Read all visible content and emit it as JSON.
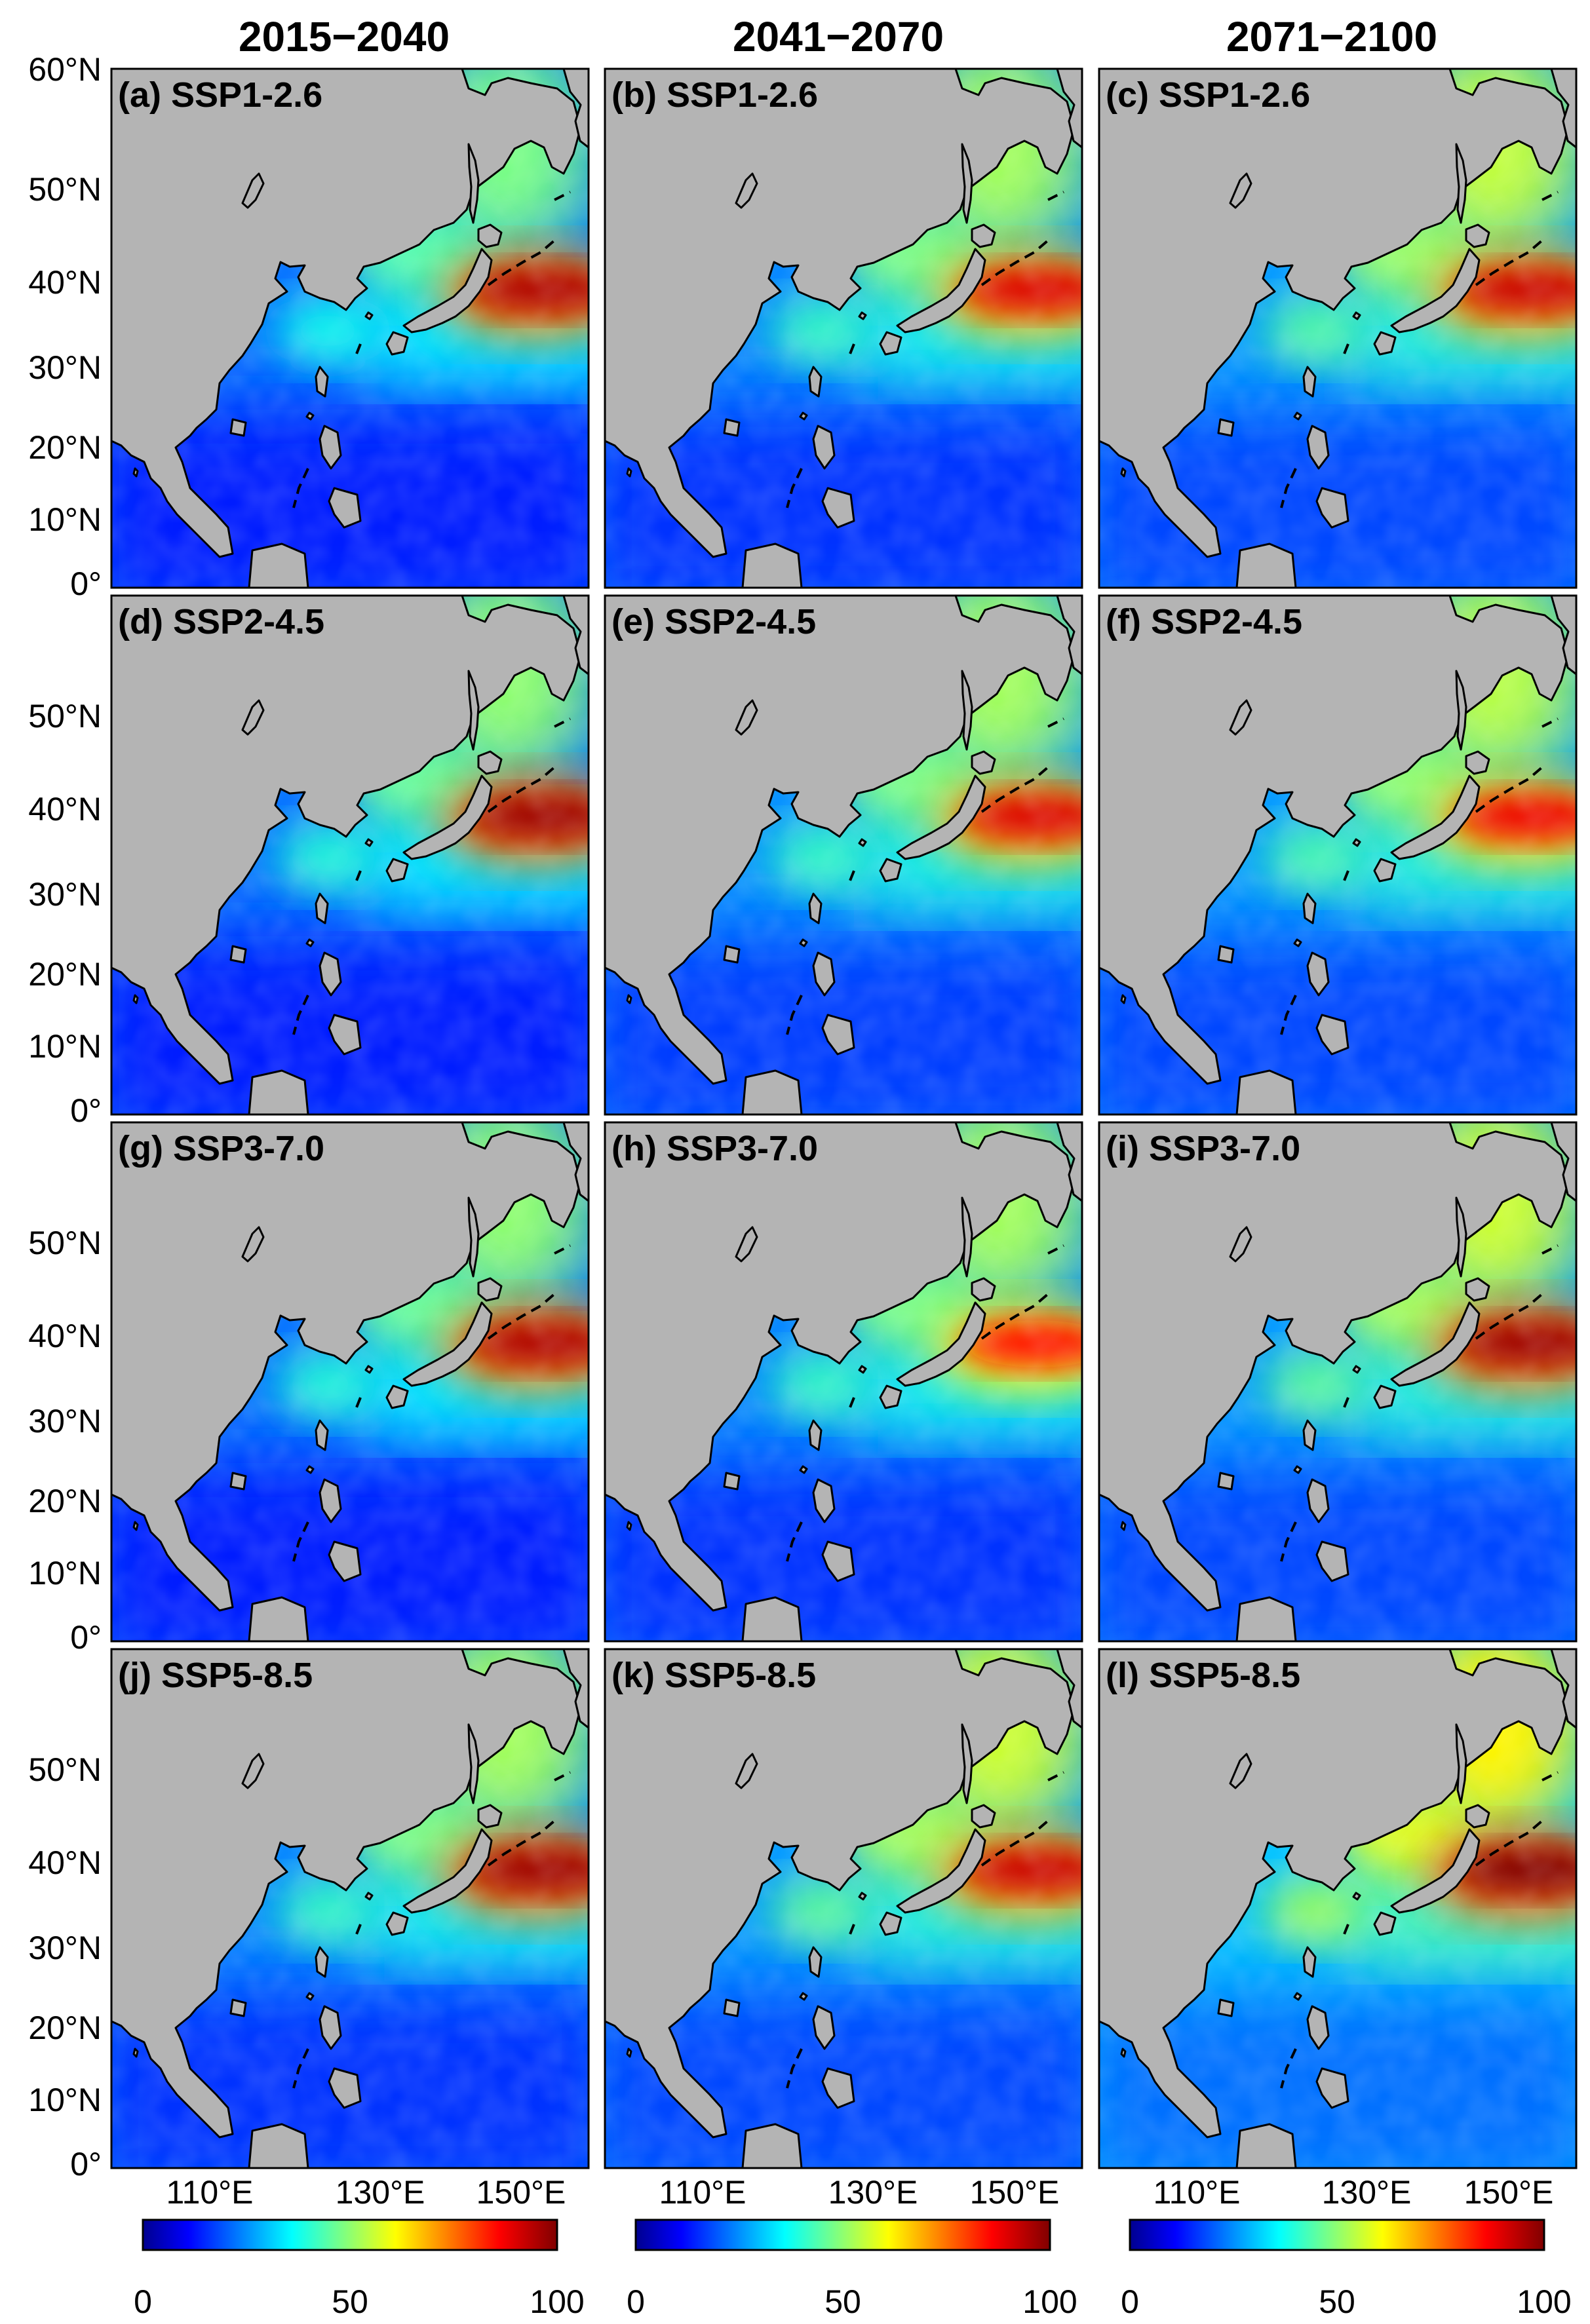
{
  "columns": [
    "2015−2040",
    "2041−2070",
    "2071−2100"
  ],
  "lat_ticks": [
    "60°N",
    "50°N",
    "40°N",
    "30°N",
    "20°N",
    "10°N",
    "0°"
  ],
  "lon_ticks": [
    "110°E",
    "130°E",
    "150°E"
  ],
  "colorbar": {
    "ticks": [
      "0",
      "50",
      "100"
    ],
    "min": 0,
    "max": 100,
    "colormap": "jet"
  },
  "colors": {
    "land": "#b4b4b4",
    "coast": "#000000",
    "frame": "#000000"
  },
  "panels": [
    {
      "label": "(a) SSP1-2.6",
      "scenario": "SSP1-2.6",
      "period": "2015−2040",
      "peak": 95
    },
    {
      "label": "(b) SSP1-2.6",
      "scenario": "SSP1-2.6",
      "period": "2041−2070",
      "peak": 90
    },
    {
      "label": "(c) SSP1-2.6",
      "scenario": "SSP1-2.6",
      "period": "2071−2100",
      "peak": 92
    },
    {
      "label": "(d) SSP2-4.5",
      "scenario": "SSP2-4.5",
      "period": "2015−2040",
      "peak": 97
    },
    {
      "label": "(e) SSP2-4.5",
      "scenario": "SSP2-4.5",
      "period": "2041−2070",
      "peak": 90
    },
    {
      "label": "(f) SSP2-4.5",
      "scenario": "SSP2-4.5",
      "period": "2071−2100",
      "peak": 88
    },
    {
      "label": "(g) SSP3-7.0",
      "scenario": "SSP3-7.0",
      "period": "2015−2040",
      "peak": 95
    },
    {
      "label": "(h) SSP3-7.0",
      "scenario": "SSP3-7.0",
      "period": "2041−2070",
      "peak": 85
    },
    {
      "label": "(i) SSP3-7.0",
      "scenario": "SSP3-7.0",
      "period": "2071−2100",
      "peak": 97
    },
    {
      "label": "(j) SSP5-8.5",
      "scenario": "SSP5-8.5",
      "period": "2015−2040",
      "peak": 97
    },
    {
      "label": "(k) SSP5-8.5",
      "scenario": "SSP5-8.5",
      "period": "2041−2070",
      "peak": 92
    },
    {
      "label": "(l) SSP5-8.5",
      "scenario": "SSP5-8.5",
      "period": "2071−2100",
      "peak": 100
    }
  ],
  "chart_data": {
    "type": "heatmap",
    "map_extent": {
      "lon": [
        95,
        165
      ],
      "lat": [
        0,
        60
      ]
    },
    "color_range": [
      0,
      100
    ],
    "panels": [
      {
        "label": "(a) SSP1-2.6",
        "band_max": 95,
        "ocean_background": 22,
        "subpolar": 48
      },
      {
        "label": "(b) SSP1-2.6",
        "band_max": 90,
        "ocean_background": 24,
        "subpolar": 52
      },
      {
        "label": "(c) SSP1-2.6",
        "band_max": 92,
        "ocean_background": 26,
        "subpolar": 55
      },
      {
        "label": "(d) SSP2-4.5",
        "band_max": 97,
        "ocean_background": 22,
        "subpolar": 50
      },
      {
        "label": "(e) SSP2-4.5",
        "band_max": 90,
        "ocean_background": 25,
        "subpolar": 52
      },
      {
        "label": "(f) SSP2-4.5",
        "band_max": 88,
        "ocean_background": 26,
        "subpolar": 54
      },
      {
        "label": "(g) SSP3-7.0",
        "band_max": 95,
        "ocean_background": 22,
        "subpolar": 50
      },
      {
        "label": "(h) SSP3-7.0",
        "band_max": 85,
        "ocean_background": 24,
        "subpolar": 52
      },
      {
        "label": "(i) SSP3-7.0",
        "band_max": 97,
        "ocean_background": 26,
        "subpolar": 56
      },
      {
        "label": "(j) SSP5-8.5",
        "band_max": 97,
        "ocean_background": 24,
        "subpolar": 52
      },
      {
        "label": "(k) SSP5-8.5",
        "band_max": 92,
        "ocean_background": 26,
        "subpolar": 56
      },
      {
        "label": "(l) SSP5-8.5",
        "band_max": 100,
        "ocean_background": 30,
        "subpolar": 62
      }
    ]
  }
}
